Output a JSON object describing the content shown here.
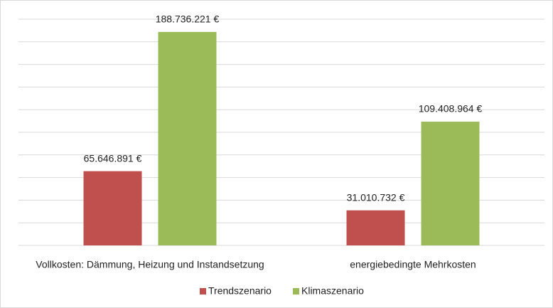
{
  "chart_data": {
    "type": "bar",
    "categories": [
      "Vollkosten: Dämmung, Heizung und Instandsetzung",
      "energiebedingte Mehrkosten"
    ],
    "series": [
      {
        "name": "Trendszenario",
        "color": "#c0504d",
        "values": [
          65646891,
          31010732
        ],
        "value_labels": [
          "65.646.891 €",
          "31.010.732 €"
        ]
      },
      {
        "name": "Klimaszenario",
        "color": "#9bbb59",
        "values": [
          188736221,
          109408964
        ],
        "value_labels": [
          "188.736.221 €",
          "109.408.964 €"
        ]
      }
    ],
    "ylim": [
      0,
      200000000
    ],
    "yticks": [
      0,
      20000000,
      40000000,
      60000000,
      80000000,
      100000000,
      120000000,
      140000000,
      160000000,
      180000000,
      200000000
    ],
    "grid": true,
    "legend": "bottom"
  }
}
